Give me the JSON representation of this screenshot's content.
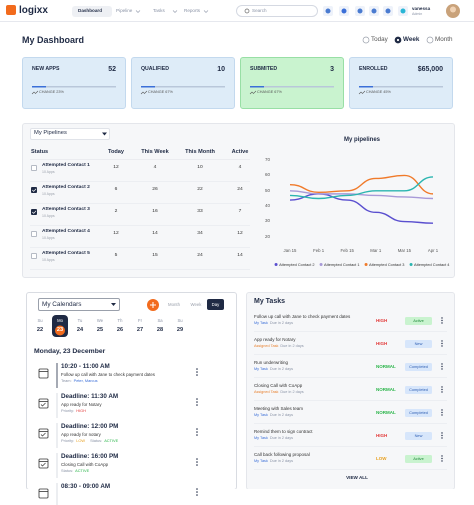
{
  "nav": {
    "logo": "logixx",
    "items": [
      "Dashboard",
      "Pipeline",
      "Tasks",
      "Reports"
    ],
    "active": 0,
    "search": "Search",
    "user": "vanessa",
    "role": "Admin"
  },
  "header": {
    "title": "My Dashboard",
    "ranges": [
      "Today",
      "Week",
      "Month"
    ],
    "selected": 1
  },
  "cards": [
    {
      "label": "NEW APPS",
      "value": 52,
      "change": "CHANGE 23%",
      "color": "#deecf8",
      "border": "#c3d9ee"
    },
    {
      "label": "QUALIFIED",
      "value": 10,
      "change": "CHANGE 67%",
      "color": "#deecf8",
      "border": "#c3d9ee"
    },
    {
      "label": "SUBMITED",
      "value": 3,
      "change": "CHANGE 67%",
      "color": "#c9f3cf",
      "border": "#98dfa5"
    },
    {
      "label": "ENROLLED",
      "value": "$65,000",
      "change": "CHANGE 45%",
      "color": "#deecf8",
      "border": "#c3d9ee"
    }
  ],
  "pipelines": {
    "dropdown": "My Pipelines",
    "columns": [
      "Status",
      "Today",
      "This Week",
      "This Month",
      "Active"
    ],
    "rows": [
      {
        "name": "Attempted Contact 1",
        "sub": "10 Apps",
        "checked": false,
        "values": [
          12,
          4,
          10,
          4
        ]
      },
      {
        "name": "Attempted Contact 2",
        "sub": "10 Apps",
        "checked": true,
        "values": [
          6,
          26,
          22,
          24
        ]
      },
      {
        "name": "Attempted Contact 3",
        "sub": "10 Apps",
        "checked": true,
        "values": [
          2,
          16,
          33,
          7
        ]
      },
      {
        "name": "Attempted Contact 4",
        "sub": "10 Apps",
        "checked": false,
        "values": [
          12,
          14,
          34,
          12
        ]
      },
      {
        "name": "Attempted Contact 5",
        "sub": "10 Apps",
        "checked": false,
        "values": [
          5,
          15,
          24,
          14
        ]
      }
    ],
    "chart": {
      "type": "line",
      "title": "My pipelines",
      "categories": [
        "Jan 15",
        "Feb 1",
        "Feb 15",
        "Mar 1",
        "Mar 15",
        "Apr 1"
      ],
      "series": [
        {
          "name": "Attempted Contact 2",
          "color": "#5a4fcf",
          "values": [
            44,
            48,
            44,
            36,
            30,
            29
          ]
        },
        {
          "name": "Attempted Contact 1",
          "color": "#a89ad8",
          "values": [
            50,
            48,
            48,
            47,
            46,
            45
          ]
        },
        {
          "name": "Attempted Contact 3",
          "color": "#f07a2a",
          "values": [
            54,
            49,
            50,
            58,
            60,
            48
          ]
        },
        {
          "name": "Attempted Contact 4",
          "color": "#2bb5b0",
          "values": [
            47,
            45,
            47,
            50,
            50,
            59
          ]
        }
      ],
      "ylim": [
        20,
        70
      ],
      "yticks": [
        20,
        30,
        40,
        50,
        60,
        70
      ],
      "grid": false
    }
  },
  "calendar": {
    "dropdown": "My Calendars",
    "views": [
      "Month",
      "Week",
      "Day"
    ],
    "view_selected": 2,
    "days": [
      {
        "label": "Su",
        "day": 22
      },
      {
        "label": "Mo",
        "day": 23
      },
      {
        "label": "Tu",
        "day": 24
      },
      {
        "label": "We",
        "day": 25
      },
      {
        "label": "Th",
        "day": 26
      },
      {
        "label": "Fr",
        "day": 27
      },
      {
        "label": "Sa",
        "day": 28
      },
      {
        "label": "Su",
        "day": 29
      }
    ],
    "day_selected": 1,
    "heading": "Monday, 23 December",
    "events": [
      {
        "time": "10:20 - 11:00 AM",
        "title": "Follow up call with Jane to check payment dates",
        "icon": "calendar",
        "meta": [
          {
            "label": "Team:",
            "value": "Peter, Marcus",
            "color": "#3b6fd8"
          }
        ]
      },
      {
        "time": "Deadline: 11:30 AM",
        "title": "App ready for Notary",
        "icon": "deadline",
        "meta": [
          {
            "label": "Priority:",
            "value": "HIGH",
            "color": "#e23b3b"
          }
        ]
      },
      {
        "time": "Deadline: 12:00 PM",
        "title": "App ready for notary",
        "icon": "deadline",
        "meta": [
          {
            "label": "Priority:",
            "value": "LOW",
            "color": "#e8a020"
          },
          {
            "label": "Status:",
            "value": "ACTIVE",
            "color": "#2bb54a"
          }
        ]
      },
      {
        "time": "Deadline: 16:00 PM",
        "title": "Closing Call with CoApp",
        "icon": "deadline",
        "meta": [
          {
            "label": "Status:",
            "value": "ACTIVE",
            "color": "#2bb54a"
          }
        ]
      },
      {
        "time": "08:30 - 09:00 AM",
        "icon": "calendar",
        "meta": []
      }
    ]
  },
  "tasks": {
    "title": "My Tasks",
    "items": [
      {
        "title": "Follow up call with Jane to check payment dates",
        "type": "My Task",
        "type_color": "#3b6fd8",
        "due": "Due in 2 days",
        "priority": "HIGH",
        "priority_color": "#e23b3b",
        "status": "Active",
        "status_bg": "#c9f3cf",
        "status_color": "#1f8a3a"
      },
      {
        "title": "App ready for Notary",
        "type": "Assigned Task",
        "type_color": "#e8812f",
        "due": "Due in 2 days",
        "priority": "HIGH",
        "priority_color": "#e23b3b",
        "status": "New",
        "status_bg": "#d7e6fb",
        "status_color": "#2f5fb3"
      },
      {
        "title": "Run underwriting",
        "type": "My Task",
        "type_color": "#3b6fd8",
        "due": "Due in 2 days",
        "priority": "NORMAL",
        "priority_color": "#2bb54a",
        "status": "Completed",
        "status_bg": "#d7e6fb",
        "status_color": "#2f5fb3"
      },
      {
        "title": "Closing Call with CoApp",
        "type": "Assigned Task",
        "type_color": "#e8812f",
        "due": "Due in 2 days",
        "priority": "NORMAL",
        "priority_color": "#2bb54a",
        "status": "Completed",
        "status_bg": "#d7e6fb",
        "status_color": "#2f5fb3"
      },
      {
        "title": "Meeting with Sales team",
        "type": "My Task",
        "type_color": "#3b6fd8",
        "due": "Due in 2 days",
        "priority": "NORMAL",
        "priority_color": "#2bb54a",
        "status": "Completed",
        "status_bg": "#d7e6fb",
        "status_color": "#2f5fb3"
      },
      {
        "title": "Remind them to sign contract",
        "type": "My Task",
        "type_color": "#3b6fd8",
        "due": "Due in 2 days",
        "priority": "HIGH",
        "priority_color": "#e23b3b",
        "status": "New",
        "status_bg": "#d7e6fb",
        "status_color": "#2f5fb3"
      },
      {
        "title": "Call back following proposal",
        "type": "My Task",
        "type_color": "#3b6fd8",
        "due": "Due in 2 days",
        "priority": "LOW",
        "priority_color": "#e8a020",
        "status": "Active",
        "status_bg": "#c9f3cf",
        "status_color": "#1f8a3a"
      }
    ],
    "view_all": "VIEW ALL"
  }
}
